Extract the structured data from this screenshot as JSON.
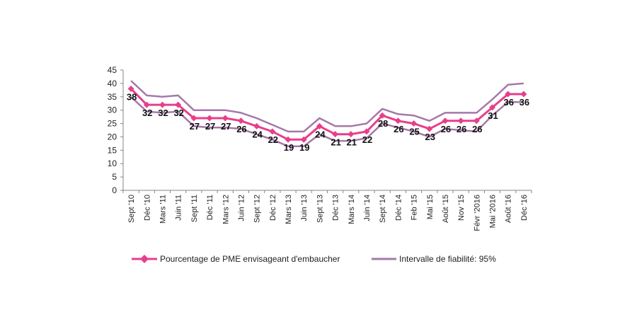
{
  "chart_data": {
    "type": "line",
    "categories": [
      "Sept '10",
      "Déc '10",
      "Mars '11",
      "Juin '11",
      "Sept '11",
      "Déc '11",
      "Mars '12",
      "Juin '12",
      "Sept '12",
      "Déc '12",
      "Mars '13",
      "Juin '13",
      "Sept '13",
      "Déc '13",
      "Mars '14",
      "Juin '14",
      "Sept '14",
      "Déc '14",
      "Feb '15",
      "Mai '15",
      "Août '15",
      "Nov '15",
      "Févr '2016",
      "Mai '2016",
      "Août '16",
      "Déc '16"
    ],
    "ylim": [
      0,
      45
    ],
    "yticks": [
      0,
      5,
      10,
      15,
      20,
      25,
      30,
      35,
      40,
      45
    ],
    "grid": false,
    "legend_position": "bottom",
    "series": [
      {
        "name": "Pourcentage de PME envisageant d'embaucher",
        "color": "#e83e8c",
        "marker": "diamond",
        "values": [
          38,
          32,
          32,
          32,
          27,
          27,
          27,
          26,
          24,
          22,
          19,
          19,
          24,
          21,
          21,
          22,
          28,
          26,
          25,
          23,
          26,
          26,
          26,
          31,
          36,
          36
        ],
        "data_labels": [
          "38",
          "32",
          "32",
          "32",
          "27",
          "27",
          "27",
          "26",
          "24",
          "22",
          "19",
          "19",
          "24",
          "21",
          "21",
          "22",
          "28",
          "26",
          "25",
          "23",
          "26",
          "26",
          "26",
          "31",
          "36",
          "36"
        ]
      },
      {
        "name": "Intervalle de fiabilité: 95%",
        "color": "#a678a8",
        "upper": [
          41,
          35.5,
          35,
          35.5,
          30,
          30,
          30,
          29,
          27,
          24.5,
          22,
          22,
          27,
          24,
          24,
          25,
          30.5,
          28.5,
          28,
          26,
          29,
          29,
          29,
          34,
          39.5,
          40
        ],
        "lower": [
          35,
          29.5,
          29,
          29.5,
          24,
          23.5,
          23.5,
          23,
          21,
          19,
          16.5,
          16.5,
          21,
          18.5,
          18.5,
          19.5,
          25,
          23.5,
          22,
          20,
          23,
          22.5,
          22,
          28,
          33,
          33
        ]
      }
    ]
  }
}
